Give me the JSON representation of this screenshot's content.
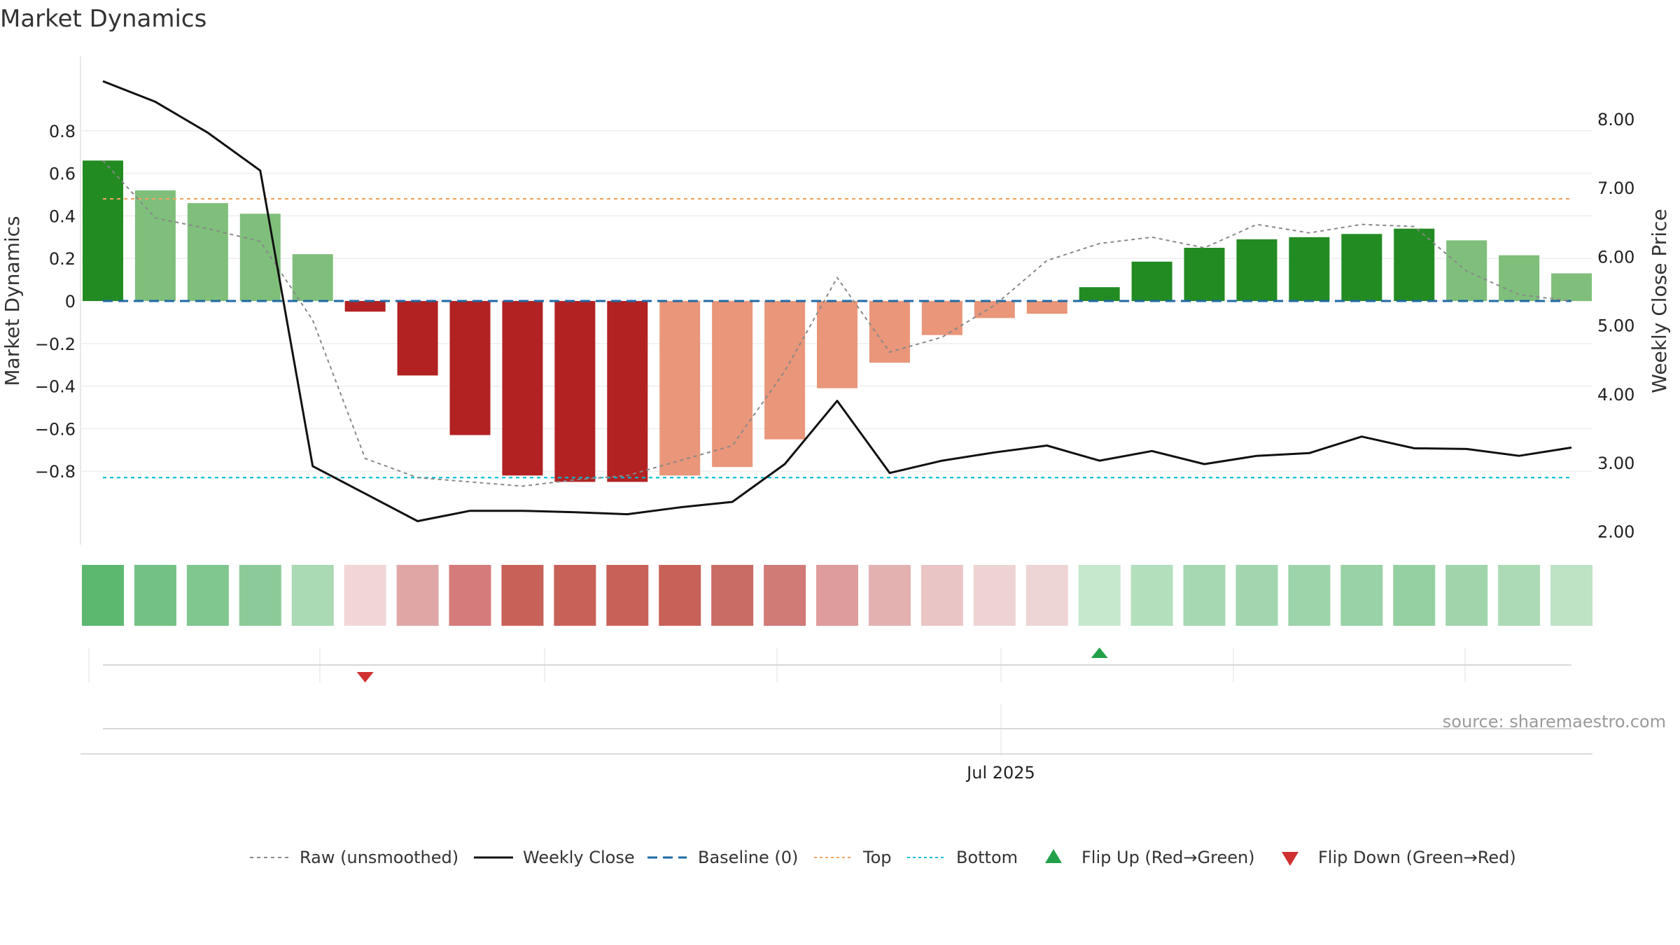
{
  "chart_data": {
    "type": "bar",
    "title": "Market Dynamics",
    "ylabel_left": "Market Dynamics",
    "ylabel_right": "Weekly Close Price",
    "xlabel": "",
    "x_tick_labels": [
      "Jul 2025"
    ],
    "y_left_ticks": [
      "0.8",
      "0.6",
      "0.4",
      "0.2",
      "0",
      "−0.2",
      "−0.4",
      "−0.6",
      "−0.8"
    ],
    "y_right_ticks": [
      "8.00",
      "7.00",
      "6.00",
      "5.00",
      "4.00",
      "3.00",
      "2.00"
    ],
    "ylim_left": [
      -0.92,
      0.92
    ],
    "ylim_right": [
      1.8,
      8.6
    ],
    "grid": true,
    "source": "source: sharemaestro.com",
    "bar_values": [
      0.66,
      0.52,
      0.46,
      0.41,
      0.22,
      -0.05,
      -0.35,
      -0.63,
      -0.82,
      -0.85,
      -0.85,
      -0.82,
      -0.78,
      -0.65,
      -0.41,
      -0.29,
      -0.16,
      -0.08,
      -0.06,
      0.065,
      0.185,
      0.25,
      0.29,
      0.3,
      0.315,
      0.34,
      0.285,
      0.215,
      0.13
    ],
    "bar_colors": [
      "#228b22",
      "#7fbf7b",
      "#7fbf7b",
      "#7fbf7b",
      "#7fbf7b",
      "#b22222",
      "#b22222",
      "#b22222",
      "#b22222",
      "#b22222",
      "#b22222",
      "#e9967a",
      "#e9967a",
      "#e9967a",
      "#e9967a",
      "#e9967a",
      "#e9967a",
      "#e9967a",
      "#e9967a",
      "#228b22",
      "#228b22",
      "#228b22",
      "#228b22",
      "#228b22",
      "#228b22",
      "#228b22",
      "#7fbf7b",
      "#7fbf7b",
      "#7fbf7b"
    ],
    "heat_colors": [
      "#5cb86f",
      "#73c184",
      "#80c68f",
      "#8ccb99",
      "#a9dab3",
      "#f2d6d6",
      "#e0a6a6",
      "#d57b7b",
      "#c86259",
      "#c86259",
      "#c86259",
      "#c86259",
      "#c96c66",
      "#d17b77",
      "#df9c9c",
      "#e4b1b1",
      "#e9c5c5",
      "#eed3d3",
      "#eed5d5",
      "#c6e8cd",
      "#b3dfbd",
      "#a6d8b1",
      "#a1d6ae",
      "#9dd4a9",
      "#98d2a6",
      "#95d0a2",
      "#a0d5ac",
      "#acdab6",
      "#bde2c4"
    ],
    "series": [
      {
        "name": "Raw (unsmoothed)",
        "axis": "left",
        "values": [
          0.66,
          0.39,
          0.34,
          0.28,
          -0.09,
          -0.74,
          -0.83,
          -0.85,
          -0.87,
          -0.84,
          -0.82,
          -0.75,
          -0.68,
          -0.33,
          0.11,
          -0.24,
          -0.17,
          -0.02,
          0.19,
          0.27,
          0.3,
          0.25,
          0.36,
          0.32,
          0.36,
          0.35,
          0.14,
          0.03,
          0.0
        ]
      },
      {
        "name": "Weekly Close",
        "axis": "right",
        "values": [
          8.55,
          8.25,
          7.8,
          7.25,
          2.95,
          2.55,
          2.15,
          2.3,
          2.3,
          2.28,
          2.25,
          2.35,
          2.43,
          2.98,
          3.9,
          2.85,
          3.03,
          3.15,
          3.25,
          3.03,
          3.17,
          2.98,
          3.1,
          3.14,
          3.38,
          3.21,
          3.2,
          3.1,
          3.22
        ]
      }
    ],
    "reference_lines": [
      {
        "name": "Baseline (0)",
        "value": 0,
        "color": "#1f6aa5"
      },
      {
        "name": "Top",
        "value": 0.48,
        "color": "#f4a460"
      },
      {
        "name": "Bottom",
        "value": -0.83,
        "color": "#00bcd4"
      }
    ],
    "flip_events": [
      {
        "name": "Flip Up (Red→Green)",
        "index": 19,
        "color": "#22a04a"
      },
      {
        "name": "Flip Down (Green→Red)",
        "index": 5,
        "color": "#d03030"
      }
    ],
    "legend": {
      "position": "bottom",
      "entries": [
        "Raw (unsmoothed)",
        "Weekly Close",
        "Baseline (0)",
        "Top",
        "Bottom",
        "Flip Up (Red→Green)",
        "Flip Down (Green→Red)"
      ]
    }
  }
}
